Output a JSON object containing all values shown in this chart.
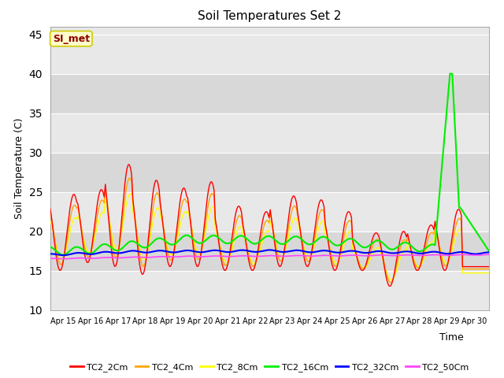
{
  "title": "Soil Temperatures Set 2",
  "xlabel": "Time",
  "ylabel": "Soil Temperature (C)",
  "ylim": [
    10,
    46
  ],
  "yticks": [
    10,
    15,
    20,
    25,
    30,
    35,
    40,
    45
  ],
  "background_color": "#ffffff",
  "plot_bg_color": "#e8e8e8",
  "band_colors": [
    "#e8e8e8",
    "#d8d8d8"
  ],
  "annotation_text": "SI_met",
  "annotation_color": "#8b0000",
  "annotation_bg": "#ffffcc",
  "annotation_border": "#cccc00",
  "series": {
    "TC2_2Cm": {
      "color": "#ff0000",
      "lw": 1.0
    },
    "TC2_4Cm": {
      "color": "#ffa500",
      "lw": 1.0
    },
    "TC2_8Cm": {
      "color": "#ffff00",
      "lw": 1.0
    },
    "TC2_16Cm": {
      "color": "#00ee00",
      "lw": 1.5
    },
    "TC2_32Cm": {
      "color": "#0000ff",
      "lw": 1.5
    },
    "TC2_50Cm": {
      "color": "#ff44ff",
      "lw": 1.2
    }
  },
  "xtick_labels": [
    "Apr 15",
    "Apr 16",
    "Apr 17",
    "Apr 18",
    "Apr 19",
    "Apr 20",
    "Apr 21",
    "Apr 22",
    "Apr 23",
    "Apr 24",
    "Apr 25",
    "Apr 26",
    "Apr 27",
    "Apr 28",
    "Apr 29",
    "Apr 30"
  ],
  "n_days": 16,
  "pts_per_day": 24,
  "peaks_2cm": [
    24.7,
    25.3,
    28.5,
    26.5,
    25.5,
    26.3,
    23.2,
    22.5,
    24.5,
    24.0,
    22.5,
    19.8,
    20.0,
    20.8,
    22.8,
    15.5
  ],
  "troughs_2cm": [
    15.0,
    16.0,
    15.5,
    14.5,
    15.5,
    15.5,
    15.0,
    15.0,
    15.5,
    15.5,
    15.0,
    15.0,
    13.0,
    15.0,
    15.0,
    15.5
  ]
}
